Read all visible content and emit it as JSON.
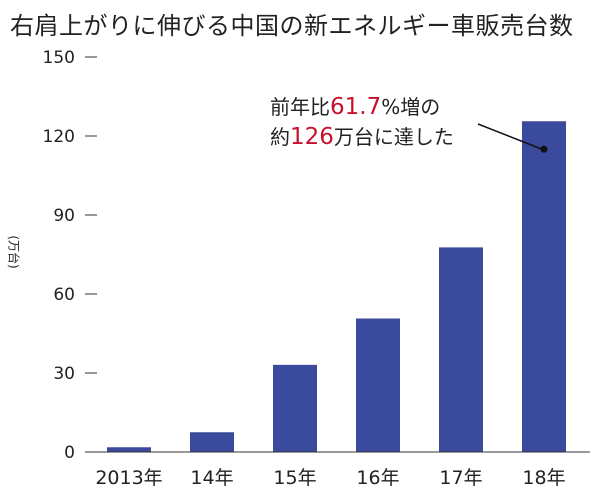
{
  "title": "右肩上がりに伸びる中国の新エネルギー車販売台数",
  "chart_data": {
    "type": "bar",
    "title": "右肩上がりに伸びる中国の新エネルギー車販売台数",
    "ylabel": "(万台)",
    "xlabel": "",
    "categories": [
      "2013年",
      "14年",
      "15年",
      "16年",
      "17年",
      "18年"
    ],
    "values": [
      1.8,
      7.5,
      33.1,
      50.7,
      77.7,
      125.6
    ],
    "ylim": [
      0,
      150
    ],
    "yticks": [
      0,
      30,
      60,
      90,
      120,
      150
    ],
    "grid": false,
    "bar_color": "#3a4a9c",
    "annotation": {
      "line1_pre": "前年比",
      "line1_value": "61.7",
      "line1_post": "%増の",
      "line2_pre": "約",
      "line2_value": "126",
      "line2_post": "万台に達した",
      "highlight_color": "#c8102e",
      "target_category": "18年"
    }
  }
}
